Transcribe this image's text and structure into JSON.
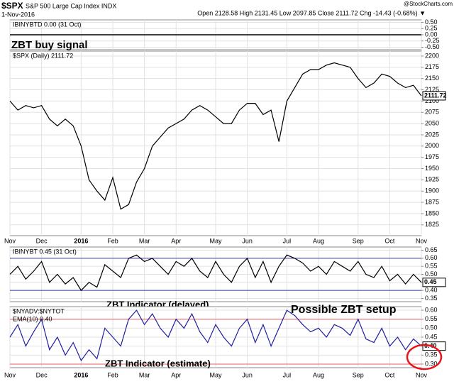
{
  "header": {
    "symbol": "$SPX",
    "name": "S&P 500 Large Cap Index INDX",
    "date": "1-Nov-2016",
    "quote": "Open 2128.58 High 2131.45 Low 2097.85 Close 2111.72 Chg -14.43 (-0.68%) ▼",
    "brand": "@StockCharts.com"
  },
  "chart_data": [
    {
      "type": "line",
      "legend": [
        "IBINYBTD 0.00 (31 Oct)"
      ],
      "annotations": [
        {
          "text": "ZBT buy signal",
          "color": "#000000"
        }
      ],
      "color": "#000000",
      "ylim": [
        -0.6,
        0.6
      ],
      "yticks": [
        {
          "value": 0.5,
          "label": "0.50"
        },
        {
          "value": 0.25,
          "label": "0.25"
        },
        {
          "value": 0,
          "label": "0.00"
        },
        {
          "value": -0.25,
          "label": "-0.25"
        },
        {
          "value": -0.5,
          "label": "-0.50"
        }
      ],
      "values": [
        0,
        0,
        0,
        0,
        0,
        0,
        0,
        0,
        0,
        0,
        0,
        0,
        0,
        0,
        0,
        0,
        0,
        0,
        0,
        0,
        0,
        0,
        0,
        0,
        0,
        0,
        0,
        0,
        0,
        0,
        0,
        0,
        0,
        0,
        0,
        0,
        0,
        0,
        0,
        0,
        0,
        0,
        0,
        0,
        0,
        0,
        0,
        0,
        0,
        0,
        0,
        0,
        0
      ]
    },
    {
      "type": "line",
      "legend": [
        "$SPX (Daily) 2111.72"
      ],
      "color": "#000000",
      "ylim": [
        1801,
        2211
      ],
      "yticks": [
        2200,
        2175,
        2150,
        2125,
        2100,
        2075,
        2050,
        2025,
        2000,
        1975,
        1950,
        1925,
        1900,
        1875,
        1850,
        1825
      ],
      "categories": [
        "Nov",
        null,
        null,
        null,
        "Dec",
        null,
        null,
        null,
        null,
        "2016",
        null,
        null,
        null,
        "Feb",
        null,
        null,
        null,
        "Mar",
        null,
        null,
        null,
        "Apr",
        null,
        null,
        null,
        null,
        "May",
        null,
        null,
        null,
        "Jun",
        null,
        null,
        null,
        null,
        "Jul",
        null,
        null,
        null,
        "Aug",
        null,
        null,
        null,
        null,
        "Sep",
        null,
        null,
        null,
        "Oct",
        null,
        null,
        null,
        "Nov"
      ],
      "values": [
        2100,
        2080,
        2090,
        2085,
        2090,
        2060,
        2045,
        2060,
        2045,
        2000,
        1925,
        1900,
        1880,
        1930,
        1860,
        1870,
        1920,
        1950,
        2000,
        2020,
        2040,
        2050,
        2060,
        2080,
        2090,
        2080,
        2065,
        2050,
        2050,
        2080,
        2095,
        2095,
        2070,
        2080,
        2010,
        2100,
        2130,
        2160,
        2170,
        2170,
        2180,
        2185,
        2180,
        2175,
        2150,
        2130,
        2140,
        2160,
        2155,
        2140,
        2130,
        2135,
        2111.72
      ]
    },
    {
      "type": "line",
      "legend": [
        "IBINYBT 0.45 (31 Oct)"
      ],
      "annotations": [
        {
          "text": "ZBT Indicator (delayed)",
          "color": "#000000"
        }
      ],
      "color": "#000000",
      "ref_color": "#3a3aa8",
      "ref_lines": [
        0.6,
        0.4
      ],
      "ylim": [
        0.33,
        0.67
      ],
      "yticks": [
        0.65,
        {
          "value": 0.6,
          "label": "0.60"
        },
        0.55,
        {
          "value": 0.5,
          "label": "0.50"
        },
        0.45,
        {
          "value": 0.4,
          "label": "0.40"
        },
        0.35
      ],
      "values": [
        0.5,
        0.55,
        0.47,
        0.52,
        0.58,
        0.45,
        0.5,
        0.44,
        0.48,
        0.4,
        0.45,
        0.42,
        0.56,
        0.52,
        0.48,
        0.6,
        0.62,
        0.58,
        0.6,
        0.55,
        0.5,
        0.58,
        0.55,
        0.6,
        0.52,
        0.48,
        0.58,
        0.5,
        0.45,
        0.55,
        0.6,
        0.48,
        0.58,
        0.45,
        0.55,
        0.62,
        0.6,
        0.57,
        0.52,
        0.55,
        0.5,
        0.58,
        0.55,
        0.52,
        0.58,
        0.5,
        0.48,
        0.55,
        0.46,
        0.5,
        0.44,
        0.5,
        0.45
      ]
    },
    {
      "type": "line",
      "legend": [
        "$NYADV:$NYTOT",
        "EMA(10) 0.40"
      ],
      "annotations": [
        {
          "text": "Possible ZBT setup",
          "color": "#e8141c"
        },
        {
          "text": "ZBT Indicator (estimate)",
          "color": "#000000"
        }
      ],
      "color": "#2020a0",
      "ref_color": "#e06060",
      "ref_lines": [
        0.55,
        0.3
      ],
      "ylim": [
        0.28,
        0.62
      ],
      "yticks": [
        {
          "value": 0.6,
          "label": "0.60"
        },
        0.55,
        {
          "value": 0.5,
          "label": "0.50"
        },
        0.45,
        {
          "value": 0.4,
          "label": "0.40"
        },
        0.35,
        {
          "value": 0.3,
          "label": "0.30"
        }
      ],
      "categories": [
        "Nov",
        null,
        null,
        null,
        "Dec",
        null,
        null,
        null,
        null,
        "2016",
        null,
        null,
        null,
        "Feb",
        null,
        null,
        null,
        "Mar",
        null,
        null,
        null,
        "Apr",
        null,
        null,
        null,
        null,
        "May",
        null,
        null,
        null,
        "Jun",
        null,
        null,
        null,
        null,
        "Jul",
        null,
        null,
        null,
        "Aug",
        null,
        null,
        null,
        null,
        "Sep",
        null,
        null,
        null,
        "Oct",
        null,
        null,
        null,
        "Nov"
      ],
      "values": [
        0.45,
        0.52,
        0.4,
        0.48,
        0.55,
        0.38,
        0.45,
        0.35,
        0.42,
        0.32,
        0.38,
        0.33,
        0.5,
        0.45,
        0.4,
        0.55,
        0.6,
        0.52,
        0.58,
        0.5,
        0.45,
        0.55,
        0.5,
        0.58,
        0.48,
        0.42,
        0.52,
        0.45,
        0.4,
        0.5,
        0.55,
        0.42,
        0.52,
        0.4,
        0.5,
        0.6,
        0.57,
        0.52,
        0.48,
        0.5,
        0.45,
        0.52,
        0.5,
        0.46,
        0.55,
        0.44,
        0.42,
        0.5,
        0.4,
        0.45,
        0.38,
        0.44,
        0.4
      ],
      "value_labels": [
        null,
        null,
        null,
        null,
        null,
        null,
        null,
        null,
        null,
        null,
        null,
        null,
        null,
        null,
        null,
        null,
        null,
        null,
        null,
        null,
        null,
        null,
        null,
        null,
        null,
        null,
        null,
        null,
        null,
        null,
        null,
        null,
        null,
        null,
        null,
        null,
        null,
        null,
        null,
        null,
        null,
        null,
        null,
        null,
        null,
        null,
        null,
        null,
        null,
        null,
        null,
        null,
        "0.40"
      ]
    }
  ]
}
